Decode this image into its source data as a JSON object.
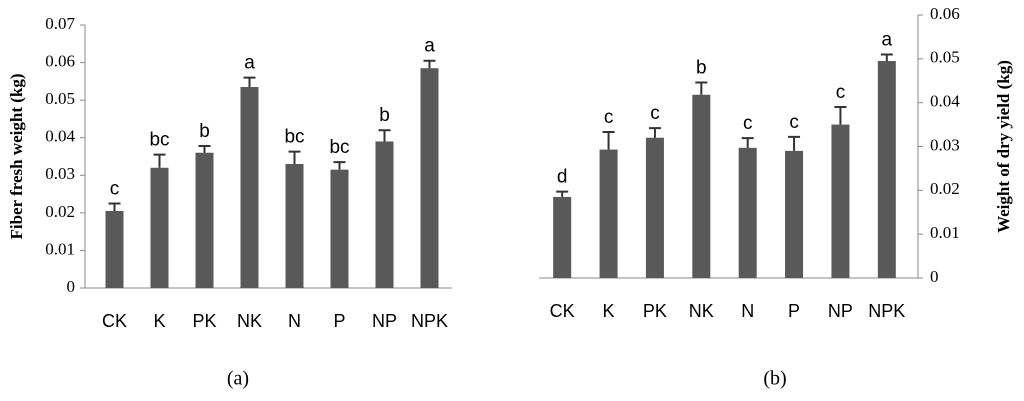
{
  "chart_data": [
    {
      "type": "bar",
      "caption": "(a)",
      "y_label": "Fiber fresh weight (kg)",
      "color": "#595959",
      "categories": [
        "CK",
        "K",
        "PK",
        "NK",
        "N",
        "P",
        "NP",
        "NPK"
      ],
      "values": [
        0.0205,
        0.032,
        0.036,
        0.0535,
        0.033,
        0.0315,
        0.039,
        0.0585
      ],
      "errors": [
        0.002,
        0.0035,
        0.0018,
        0.0025,
        0.0033,
        0.002,
        0.003,
        0.002
      ],
      "annotations": [
        "c",
        "bc",
        "b",
        "a",
        "bc",
        "bc",
        "b",
        "a"
      ],
      "ylim": [
        0,
        0.07
      ],
      "yticks": [
        0,
        0.01,
        0.02,
        0.03,
        0.04,
        0.05,
        0.06,
        0.07
      ],
      "y_axis_side": "left"
    },
    {
      "type": "bar",
      "caption": "(b)",
      "y_label": "Weight of dry yield (kg)",
      "color": "#595959",
      "categories": [
        "CK",
        "K",
        "PK",
        "NK",
        "N",
        "P",
        "NP",
        "NPK"
      ],
      "values": [
        0.0185,
        0.0293,
        0.032,
        0.0418,
        0.0297,
        0.029,
        0.035,
        0.0495
      ],
      "errors": [
        0.0012,
        0.004,
        0.0022,
        0.0028,
        0.0022,
        0.0032,
        0.004,
        0.0015
      ],
      "annotations": [
        "d",
        "c",
        "c",
        "b",
        "c",
        "c",
        "c",
        "a"
      ],
      "ylim": [
        0,
        0.06
      ],
      "yticks": [
        0,
        0.01,
        0.02,
        0.03,
        0.04,
        0.05,
        0.06
      ],
      "y_axis_side": "right"
    }
  ]
}
